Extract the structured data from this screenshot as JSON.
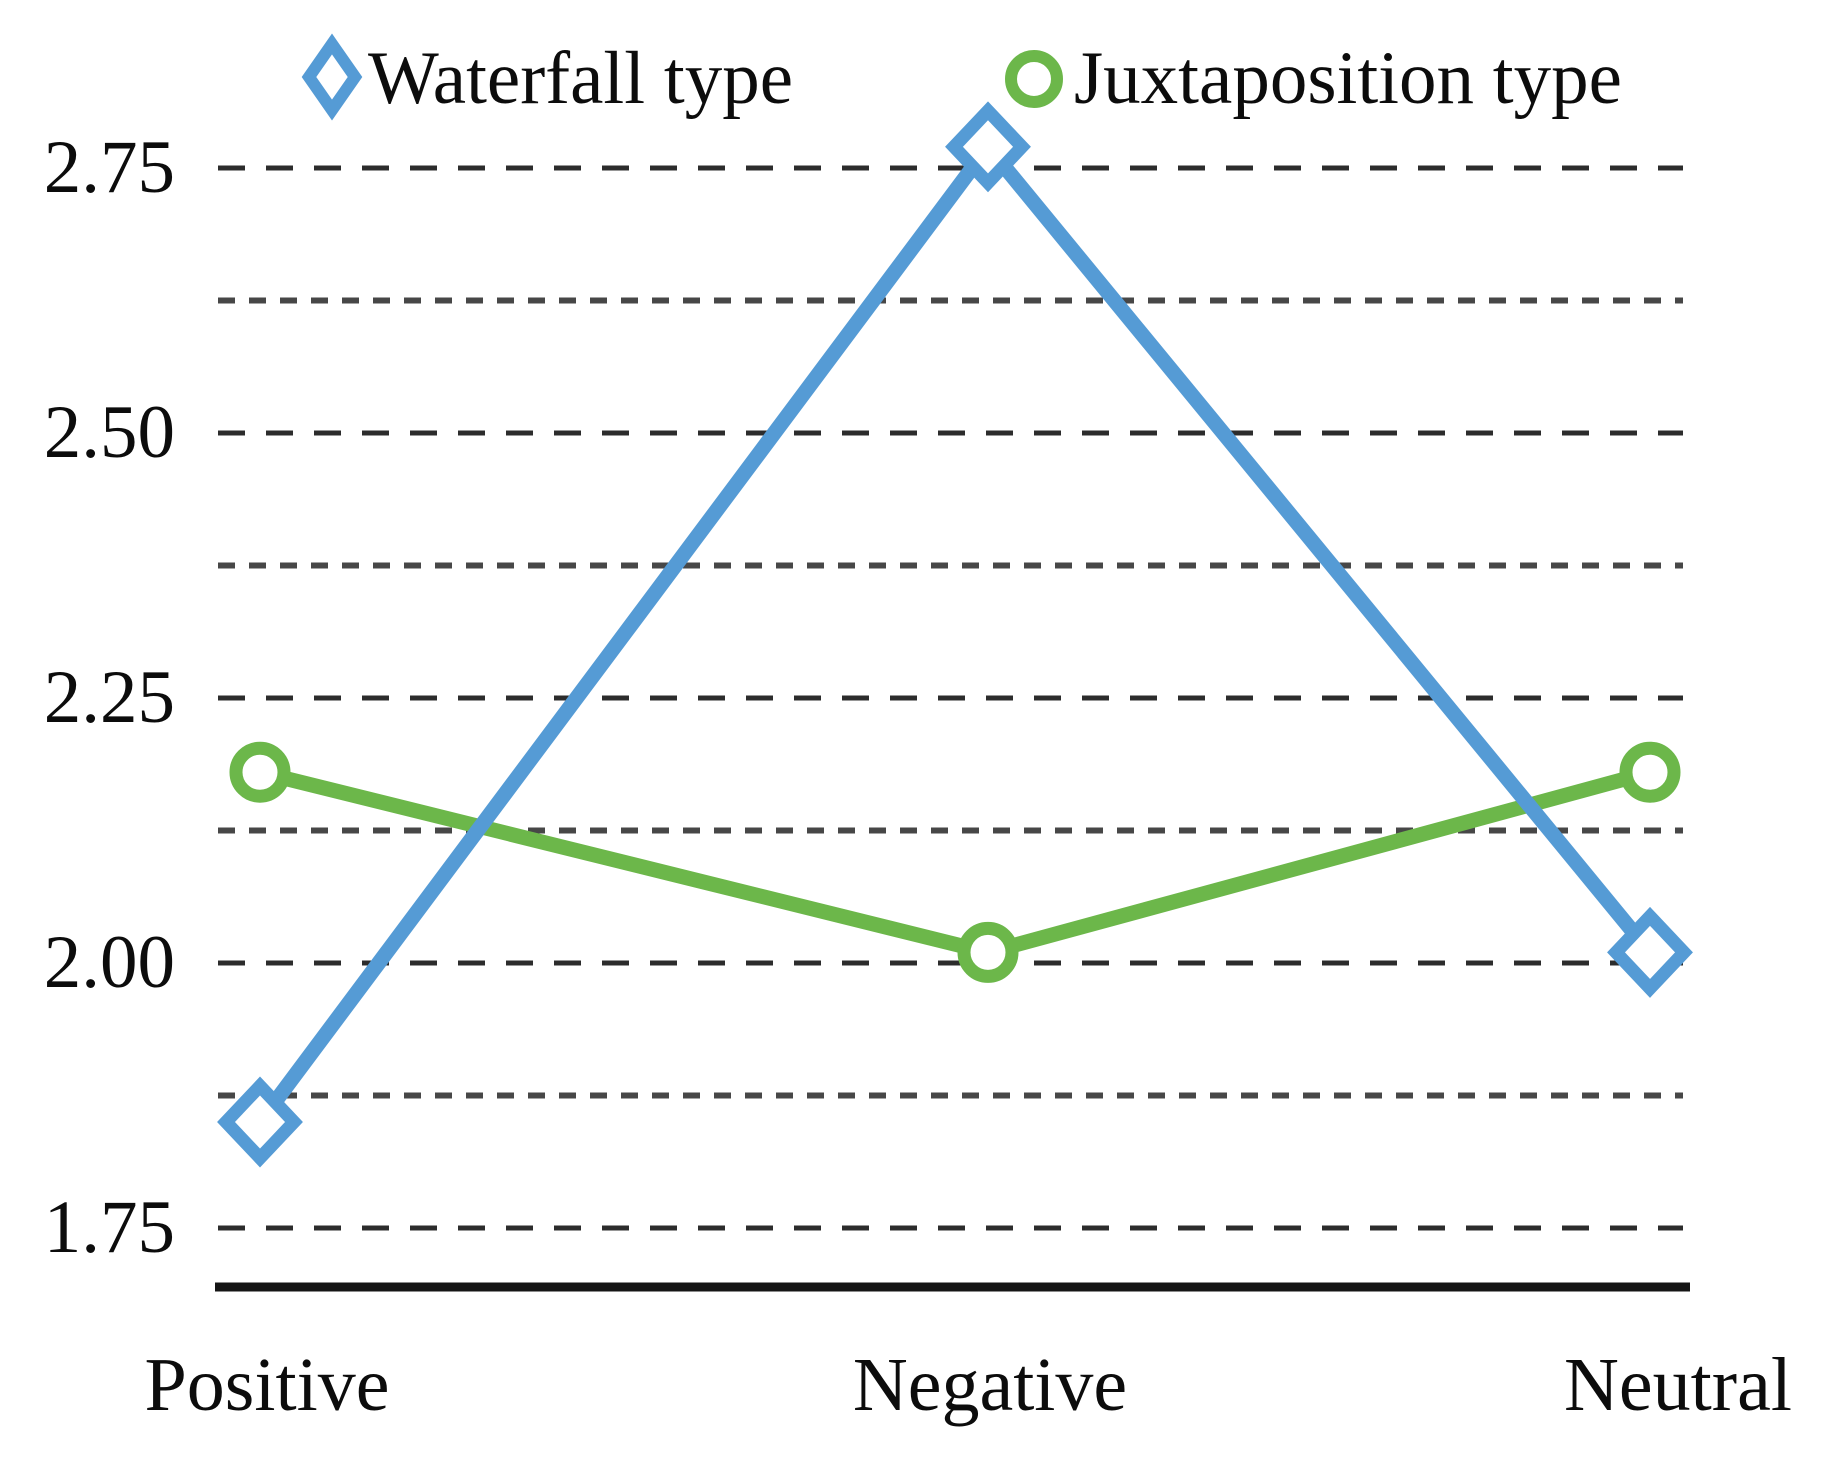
{
  "colors": {
    "waterfall": "#559bd5",
    "juxtaposition": "#6cb74a",
    "grid_major": "#2c2c2c",
    "grid_minor": "#474747",
    "axis": "#151515",
    "text": "#0c0c0c",
    "background": "#ffffff",
    "marker_fill": "#ffffff"
  },
  "chart_data": {
    "type": "line",
    "title": "",
    "xlabel": "",
    "ylabel": "",
    "categories": [
      "Positive",
      "Negative",
      "Neutral"
    ],
    "series": [
      {
        "name": "Waterfall type",
        "marker": "diamond",
        "color": "#559bd5",
        "values": [
          1.85,
          2.77,
          2.01
        ]
      },
      {
        "name": "Juxtaposition type",
        "marker": "circle",
        "color": "#6cb74a",
        "values": [
          2.18,
          2.01,
          2.18
        ]
      }
    ],
    "yticks": [
      2.75,
      2.5,
      2.25,
      2.0,
      1.75
    ],
    "ytick_labels": [
      "2.75",
      "2.50",
      "2.25",
      "2.00",
      "1.75"
    ],
    "minor_yticks": [
      2.625,
      2.375,
      2.125,
      1.875
    ],
    "ylim": [
      1.69,
      2.82
    ],
    "grid": "horizontal-dashed",
    "legend_position": "top"
  }
}
